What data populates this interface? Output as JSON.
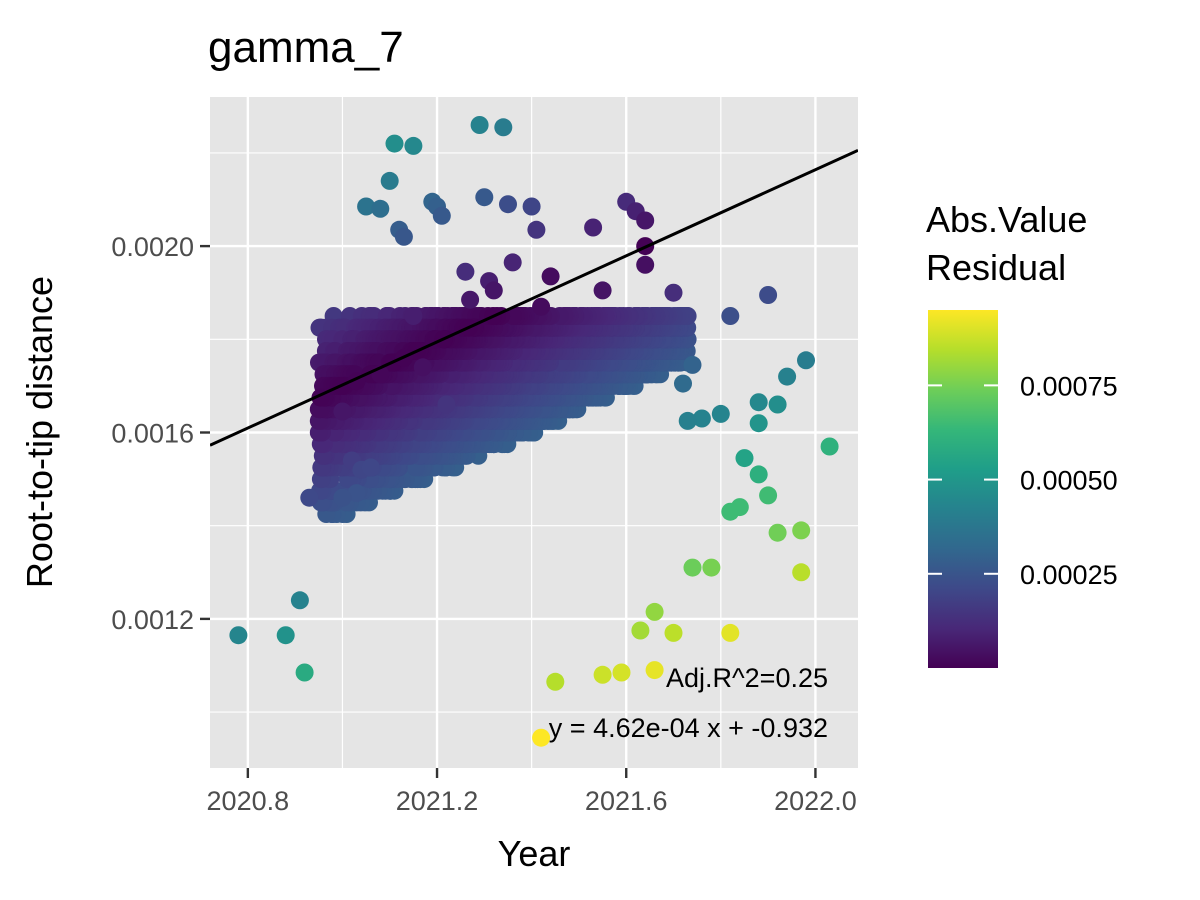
{
  "chart_data": {
    "type": "scatter",
    "title": "gamma_7",
    "xlabel": "Year",
    "ylabel": "Root-to-tip distance",
    "xlim": [
      2020.72,
      2022.09
    ],
    "ylim": [
      0.00088,
      0.00232
    ],
    "x_ticks": [
      2020.8,
      2021.2,
      2021.6,
      2022.0
    ],
    "x_tick_labels": [
      "2020.8",
      "2021.2",
      "2021.6",
      "2022.0"
    ],
    "y_ticks": [
      0.0012,
      0.0016,
      0.002
    ],
    "y_tick_labels": [
      "0.0012",
      "0.0016",
      "0.0020"
    ],
    "grid": true,
    "background": "#e5e5e5",
    "regression": {
      "slope": 0.000462,
      "intercept": -0.932,
      "adj_r2_label": "Adj.R^2=0.25",
      "equation_label": "y = 4.62e-04 x + -0.932"
    },
    "color_scale": {
      "name": "viridis",
      "title_lines": [
        "Abs.Value",
        "Residual"
      ],
      "range": [
        0,
        0.00095
      ],
      "ticks": [
        0.00025,
        0.0005,
        0.00075
      ],
      "tick_labels": [
        "0.00025",
        "0.00050",
        "0.00075"
      ],
      "stops": [
        "#440154",
        "#482878",
        "#3e4989",
        "#31688e",
        "#26828e",
        "#1f9e89",
        "#35b779",
        "#6ece58",
        "#b5de2b",
        "#fde725"
      ]
    },
    "points": [
      [
        2020.78,
        0.001165
      ],
      [
        2020.88,
        0.001165
      ],
      [
        2020.91,
        0.00124
      ],
      [
        2020.92,
        0.001085
      ],
      [
        2020.93,
        0.00146
      ],
      [
        2021.0,
        0.001645
      ],
      [
        2021.03,
        0.00171
      ],
      [
        2021.05,
        0.002085
      ],
      [
        2021.08,
        0.00208
      ],
      [
        2021.08,
        0.001725
      ],
      [
        2021.1,
        0.00214
      ],
      [
        2021.11,
        0.00222
      ],
      [
        2021.12,
        0.002035
      ],
      [
        2021.13,
        0.00202
      ],
      [
        2021.15,
        0.002215
      ],
      [
        2021.13,
        0.00176
      ],
      [
        2021.15,
        0.00185
      ],
      [
        2021.17,
        0.00174
      ],
      [
        2021.19,
        0.002095
      ],
      [
        2021.2,
        0.002085
      ],
      [
        2021.21,
        0.002065
      ],
      [
        2021.22,
        0.00166
      ],
      [
        2021.26,
        0.001945
      ],
      [
        2021.27,
        0.001885
      ],
      [
        2021.29,
        0.00226
      ],
      [
        2021.3,
        0.002105
      ],
      [
        2021.31,
        0.001925
      ],
      [
        2021.32,
        0.001905
      ],
      [
        2021.34,
        0.002255
      ],
      [
        2021.35,
        0.00209
      ],
      [
        2021.36,
        0.001965
      ],
      [
        2021.4,
        0.002085
      ],
      [
        2021.41,
        0.002035
      ],
      [
        2021.42,
        0.00187
      ],
      [
        2021.44,
        0.001935
      ],
      [
        2021.53,
        0.00204
      ],
      [
        2021.55,
        0.001905
      ],
      [
        2021.6,
        0.002095
      ],
      [
        2021.62,
        0.002075
      ],
      [
        2021.64,
        0.002055
      ],
      [
        2021.64,
        0.002
      ],
      [
        2021.64,
        0.00196
      ],
      [
        2021.7,
        0.0019
      ],
      [
        2021.82,
        0.00185
      ],
      [
        2021.9,
        0.001895
      ],
      [
        2021.92,
        0.00166
      ],
      [
        2021.94,
        0.00172
      ],
      [
        2021.98,
        0.001755
      ],
      [
        2022.03,
        0.00157
      ],
      [
        2021.97,
        0.00139
      ],
      [
        2021.97,
        0.0013
      ],
      [
        2021.92,
        0.001385
      ],
      [
        2021.9,
        0.001465
      ],
      [
        2021.88,
        0.00151
      ],
      [
        2021.84,
        0.00144
      ],
      [
        2021.82,
        0.00143
      ],
      [
        2021.78,
        0.00131
      ],
      [
        2021.74,
        0.00131
      ],
      [
        2021.7,
        0.00117
      ],
      [
        2021.82,
        0.00117
      ],
      [
        2021.42,
        0.000945
      ],
      [
        2021.45,
        0.001065
      ],
      [
        2021.55,
        0.00108
      ],
      [
        2021.59,
        0.001085
      ],
      [
        2021.66,
        0.00109
      ],
      [
        2021.63,
        0.001175
      ],
      [
        2021.66,
        0.001215
      ],
      [
        2021.88,
        0.00162
      ],
      [
        2021.88,
        0.001665
      ],
      [
        2021.85,
        0.001545
      ],
      [
        2021.8,
        0.00164
      ],
      [
        2021.76,
        0.00163
      ],
      [
        2021.73,
        0.001625
      ],
      [
        2021.72,
        0.001705
      ],
      [
        2021.74,
        0.001745
      ],
      [
        2021.02,
        0.00154
      ],
      [
        2021.04,
        0.00152
      ],
      [
        2021.06,
        0.001525
      ],
      [
        2021.03,
        0.00147
      ],
      [
        2021.0,
        0.00146
      ]
    ]
  }
}
